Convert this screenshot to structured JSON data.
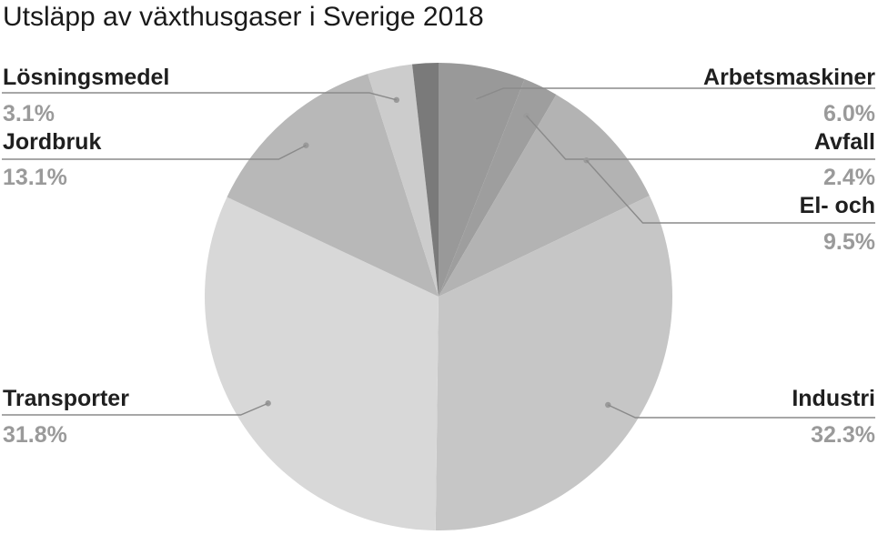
{
  "chart_data": {
    "type": "pie",
    "title": "Utsläpp av växthusgaser i Sverige 2018",
    "slices": [
      {
        "label": "Arbetsmaskiner",
        "value": 6.0,
        "display": "6.0%",
        "color": "#999999",
        "side": "right"
      },
      {
        "label": "Avfall",
        "value": 2.4,
        "display": "2.4%",
        "color": "#9e9e9e",
        "side": "right"
      },
      {
        "label": "El- och",
        "value": 9.5,
        "display": "9.5%",
        "color": "#b3b3b3",
        "side": "right"
      },
      {
        "label": "Industri",
        "value": 32.3,
        "display": "32.3%",
        "color": "#c6c6c6",
        "side": "right"
      },
      {
        "label": "Transporter",
        "value": 31.8,
        "display": "31.8%",
        "color": "#d8d8d8",
        "side": "left"
      },
      {
        "label": "Jordbruk",
        "value": 13.1,
        "display": "13.1%",
        "color": "#b8b8b8",
        "side": "left"
      },
      {
        "label": "Lösningsmedel",
        "value": 3.1,
        "display": "3.1%",
        "color": "#cccccc",
        "side": "left"
      },
      {
        "label": "",
        "value": 1.8,
        "display": "",
        "color": "#7a7a7a",
        "side": "none"
      }
    ]
  }
}
